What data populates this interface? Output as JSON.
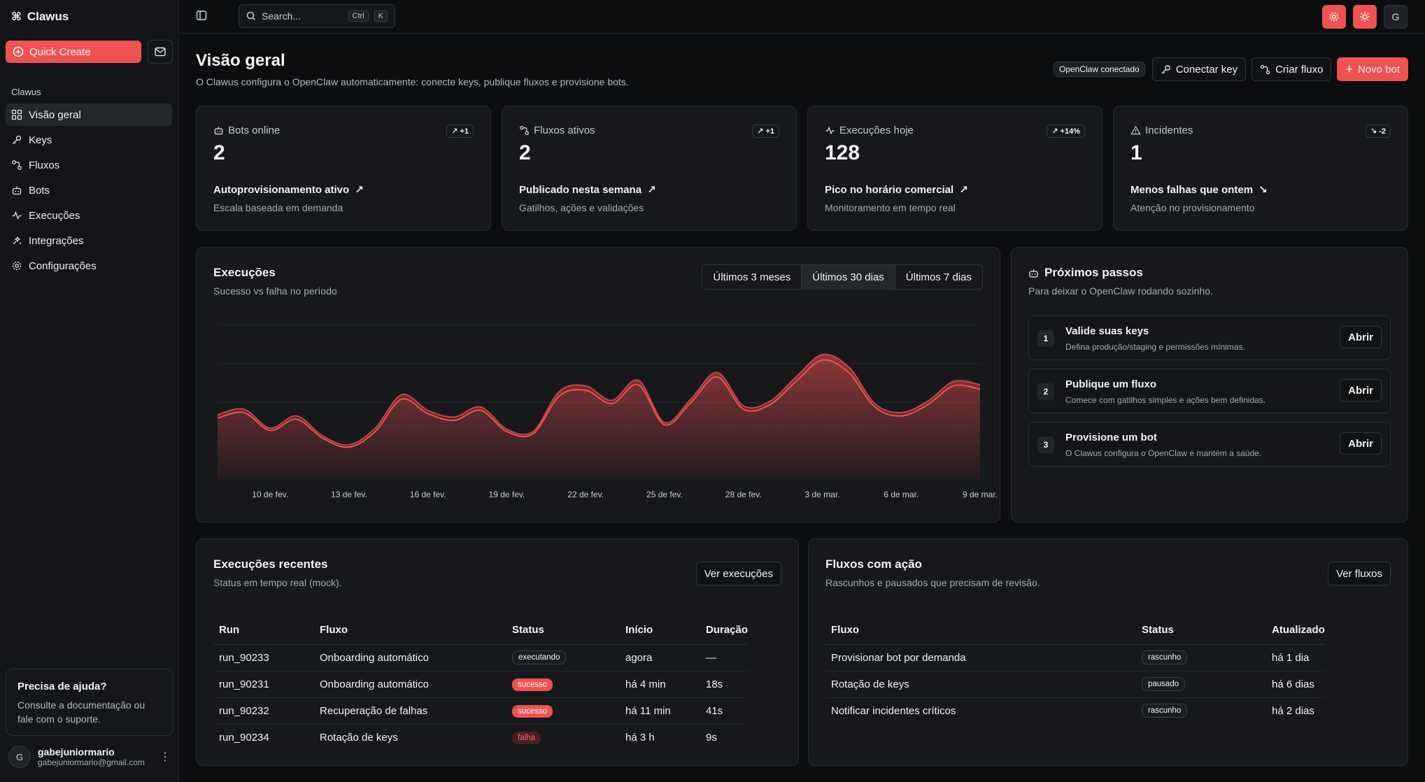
{
  "app": {
    "name": "Clawus"
  },
  "sidebar": {
    "quick_create": "Quick Create",
    "group_label": "Clawus",
    "items": [
      {
        "label": "Visão geral",
        "icon": "dashboard-icon",
        "active": true
      },
      {
        "label": "Keys",
        "icon": "key-icon"
      },
      {
        "label": "Fluxos",
        "icon": "flow-icon"
      },
      {
        "label": "Bots",
        "icon": "bot-icon"
      },
      {
        "label": "Execuções",
        "icon": "activity-icon"
      },
      {
        "label": "Integrações",
        "icon": "integrations-icon"
      },
      {
        "label": "Configurações",
        "icon": "gear-icon"
      }
    ],
    "help": {
      "title": "Precisa de ajuda?",
      "text": "Consulte a documentação ou fale com o suporte."
    },
    "user": {
      "initial": "G",
      "name": "gabejuniormario",
      "email": "gabejuniormario@gmail.com"
    }
  },
  "topbar": {
    "search_placeholder": "Search...",
    "kbd1": "Ctrl",
    "kbd2": "K",
    "avatar": "G"
  },
  "header": {
    "title": "Visão geral",
    "subtitle": "O Clawus configura o OpenClaw automaticamente: conecte keys, publique fluxos e provisione bots.",
    "badge": "OpenClaw conectado",
    "connect_key": "Conectar key",
    "create_flow": "Criar fluxo",
    "new_bot": "Novo bot"
  },
  "stats": [
    {
      "label": "Bots online",
      "chip": "+1",
      "value": "2",
      "line1": "Autoprovisionamento ativo",
      "line2": "Escala baseada em demanda",
      "trend": "up"
    },
    {
      "label": "Fluxos ativos",
      "chip": "+1",
      "value": "2",
      "line1": "Publicado nesta semana",
      "line2": "Gatilhos, ações e validações",
      "trend": "up"
    },
    {
      "label": "Execuções hoje",
      "chip": "+14%",
      "value": "128",
      "line1": "Pico no horário comercial",
      "line2": "Monitoramento em tempo real",
      "trend": "up"
    },
    {
      "label": "Incidentes",
      "chip": "-2",
      "value": "1",
      "line1": "Menos falhas que ontem",
      "line2": "Atenção no provisionamento",
      "trend": "down"
    }
  ],
  "executions_chart": {
    "title": "Execuções",
    "subtitle": "Sucesso vs falha no período",
    "ranges": [
      "Últimos 3 meses",
      "Últimos 30 dias",
      "Últimos 7 dias"
    ],
    "selected_range": "Últimos 30 dias"
  },
  "chart_data": {
    "type": "area",
    "x": [
      "8 de fev.",
      "9 de fev.",
      "10 de fev.",
      "11 de fev.",
      "12 de fev.",
      "13 de fev.",
      "14 de fev.",
      "15 de fev.",
      "16 de fev.",
      "17 de fev.",
      "18 de fev.",
      "19 de fev.",
      "20 de fev.",
      "21 de fev.",
      "22 de fev.",
      "23 de fev.",
      "24 de fev.",
      "25 de fev.",
      "26 de fev.",
      "27 de fev.",
      "28 de fev.",
      "1 de mar.",
      "2 de mar.",
      "3 de mar.",
      "4 de mar.",
      "5 de mar.",
      "6 de mar.",
      "7 de mar.",
      "8 de mar.",
      "9 de mar."
    ],
    "x_ticks": [
      "10 de fev.",
      "13 de fev.",
      "16 de fev.",
      "19 de fev.",
      "22 de fev.",
      "25 de fev.",
      "28 de fev.",
      "3 de mar.",
      "6 de mar.",
      "9 de mar."
    ],
    "series": [
      {
        "values": [
          56,
          61,
          45,
          55,
          38,
          30,
          44,
          73,
          60,
          54,
          63,
          44,
          42,
          76,
          81,
          69,
          86,
          50,
          70,
          93,
          64,
          68,
          89,
          108,
          97,
          66,
          58,
          68,
          85,
          82
        ]
      },
      {
        "values": [
          3,
          3,
          2,
          3,
          2,
          2,
          3,
          4,
          3,
          3,
          3,
          2,
          2,
          4,
          4,
          3,
          4,
          2,
          3,
          4,
          3,
          3,
          4,
          5,
          5,
          3,
          3,
          3,
          4,
          4
        ]
      }
    ],
    "ylim": [
      0,
      140
    ],
    "grid": true,
    "colors": [
      "#f05252",
      "#c94545"
    ]
  },
  "next_steps": {
    "title": "Próximos passos",
    "subtitle": "Para deixar o OpenClaw rodando sozinho.",
    "items": [
      {
        "num": "1",
        "title": "Valide suas keys",
        "desc": "Defina produção/staging e permissões mínimas.",
        "action": "Abrir"
      },
      {
        "num": "2",
        "title": "Publique um fluxo",
        "desc": "Comece com gatilhos simples e ações bem definidas.",
        "action": "Abrir"
      },
      {
        "num": "3",
        "title": "Provisione um bot",
        "desc": "O Clawus configura o OpenClaw e mantém a saúde.",
        "action": "Abrir"
      }
    ]
  },
  "recent": {
    "title": "Execuções recentes",
    "subtitle": "Status em tempo real (mock).",
    "action": "Ver execuções",
    "columns": [
      "Run",
      "Fluxo",
      "Status",
      "Início",
      "Duração"
    ],
    "rows": [
      {
        "run": "run_90233",
        "flow": "Onboarding automático",
        "status": "executando",
        "kind": "neutral",
        "start": "agora",
        "dur": "—"
      },
      {
        "run": "run_90231",
        "flow": "Onboarding automático",
        "status": "sucesso",
        "kind": "ok",
        "start": "há 4 min",
        "dur": "18s"
      },
      {
        "run": "run_90232",
        "flow": "Recuperação de falhas",
        "status": "sucesso",
        "kind": "ok",
        "start": "há 11 min",
        "dur": "41s"
      },
      {
        "run": "run_90234",
        "flow": "Rotação de keys",
        "status": "falha",
        "kind": "fail",
        "start": "há 3 h",
        "dur": "9s"
      }
    ]
  },
  "flows": {
    "title": "Fluxos com ação",
    "subtitle": "Rascunhos e pausados que precisam de revisão.",
    "action": "Ver fluxos",
    "columns": [
      "Fluxo",
      "Status",
      "Atualizado"
    ],
    "rows": [
      {
        "flow": "Provisionar bot por demanda",
        "status": "rascunho",
        "updated": "há 1 dia"
      },
      {
        "flow": "Rotação de keys",
        "status": "pausado",
        "updated": "há 6 dias"
      },
      {
        "flow": "Notificar incidentes críticos",
        "status": "rascunho",
        "updated": "há 2 dias"
      }
    ]
  }
}
